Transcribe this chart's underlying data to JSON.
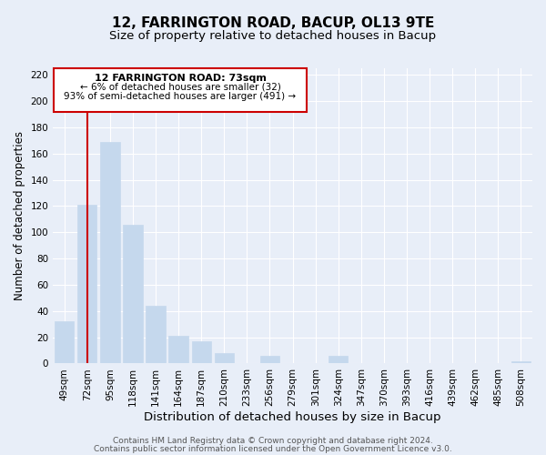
{
  "title": "12, FARRINGTON ROAD, BACUP, OL13 9TE",
  "subtitle": "Size of property relative to detached houses in Bacup",
  "xlabel": "Distribution of detached houses by size in Bacup",
  "ylabel": "Number of detached properties",
  "bar_color": "#c5d8ed",
  "bar_edge_color": "#c5d8ed",
  "categories": [
    "49sqm",
    "72sqm",
    "95sqm",
    "118sqm",
    "141sqm",
    "164sqm",
    "187sqm",
    "210sqm",
    "233sqm",
    "256sqm",
    "279sqm",
    "301sqm",
    "324sqm",
    "347sqm",
    "370sqm",
    "393sqm",
    "416sqm",
    "439sqm",
    "462sqm",
    "485sqm",
    "508sqm"
  ],
  "values": [
    32,
    121,
    169,
    106,
    44,
    21,
    17,
    8,
    0,
    6,
    0,
    0,
    6,
    0,
    0,
    0,
    0,
    0,
    0,
    0,
    2
  ],
  "ylim": [
    0,
    225
  ],
  "yticks": [
    0,
    20,
    40,
    60,
    80,
    100,
    120,
    140,
    160,
    180,
    200,
    220
  ],
  "vline_x": 1,
  "vline_color": "#cc0000",
  "annotation_title": "12 FARRINGTON ROAD: 73sqm",
  "annotation_line1": "← 6% of detached houses are smaller (32)",
  "annotation_line2": "93% of semi-detached houses are larger (491) →",
  "footer1": "Contains HM Land Registry data © Crown copyright and database right 2024.",
  "footer2": "Contains public sector information licensed under the Open Government Licence v3.0.",
  "background_color": "#e8eef8",
  "grid_color": "#ffffff",
  "title_fontsize": 11,
  "subtitle_fontsize": 9.5,
  "xlabel_fontsize": 9.5,
  "ylabel_fontsize": 8.5,
  "tick_fontsize": 7.5,
  "footer_fontsize": 6.5,
  "ann_fontsize_title": 8,
  "ann_fontsize_body": 7.5
}
